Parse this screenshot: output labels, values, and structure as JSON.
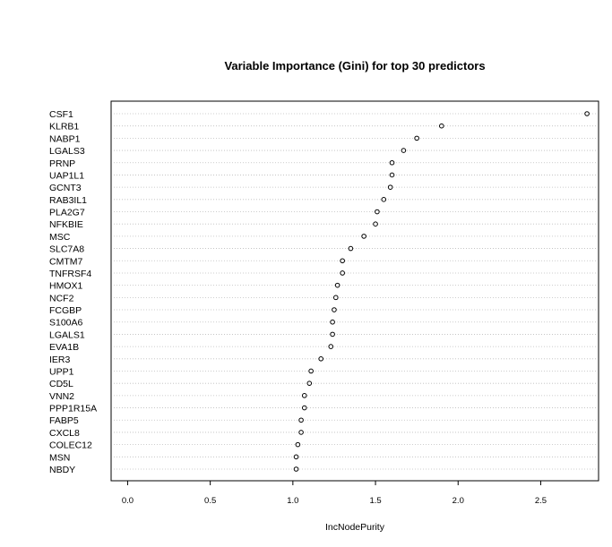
{
  "chart_data": {
    "type": "scatter",
    "title": "Variable Importance (Gini) for top 30 predictors",
    "xlabel": "IncNodePurity",
    "ylabel": "",
    "xlim": [
      -0.1,
      2.85
    ],
    "xticks": [
      "0.0",
      "0.5",
      "1.0",
      "1.5",
      "2.0",
      "2.5"
    ],
    "grid": "horizontal dotted guides",
    "categories": [
      "CSF1",
      "KLRB1",
      "NABP1",
      "LGALS3",
      "PRNP",
      "UAP1L1",
      "GCNT3",
      "RAB3IL1",
      "PLA2G7",
      "NFKBIE",
      "MSC",
      "SLC7A8",
      "CMTM7",
      "TNFRSF4",
      "HMOX1",
      "NCF2",
      "FCGBP",
      "S100A6",
      "LGALS1",
      "EVA1B",
      "IER3",
      "UPP1",
      "CD5L",
      "VNN2",
      "PPP1R15A",
      "FABP5",
      "CXCL8",
      "COLEC12",
      "MSN",
      "NBDY"
    ],
    "values": [
      2.78,
      1.9,
      1.75,
      1.67,
      1.6,
      1.6,
      1.59,
      1.55,
      1.51,
      1.5,
      1.43,
      1.35,
      1.3,
      1.3,
      1.27,
      1.26,
      1.25,
      1.24,
      1.24,
      1.23,
      1.17,
      1.11,
      1.1,
      1.07,
      1.07,
      1.05,
      1.05,
      1.03,
      1.02,
      1.02
    ]
  }
}
